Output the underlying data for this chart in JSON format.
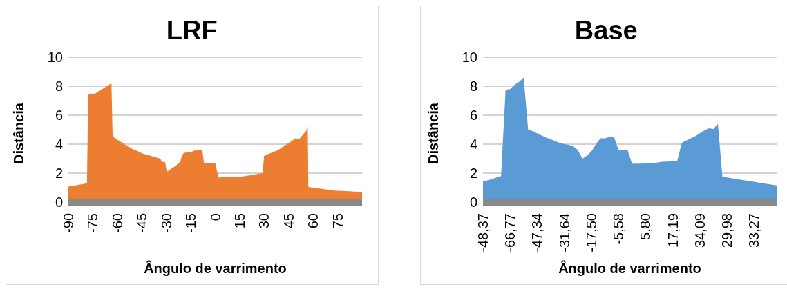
{
  "chart_data": [
    {
      "type": "area",
      "title": "LRF",
      "xlabel": "Ângulo de varrimento",
      "ylabel": "Distância",
      "color": "#ed7d31",
      "x": [
        -90,
        -78.6,
        -77.9,
        -76,
        -75,
        -72.1,
        -63.6,
        -62.9,
        -61.4,
        -55.7,
        -51.4,
        -44.3,
        -33.6,
        -32.9,
        -30.7,
        -29.7,
        -24.3,
        -21.4,
        -20.7,
        -19.3,
        -14.3,
        -13.6,
        -7.9,
        -6.9,
        0,
        1.9,
        15.7,
        29,
        30,
        38.6,
        49.3,
        51.4,
        55.7,
        56.7,
        57.1,
        72.9,
        90
      ],
      "values": [
        1.07,
        1.3,
        7.4,
        7.5,
        7.4,
        7.6,
        8.2,
        4.6,
        4.4,
        4.0,
        3.7,
        3.35,
        3.0,
        2.8,
        2.75,
        2.1,
        2.5,
        2.8,
        3.1,
        3.4,
        3.45,
        3.55,
        3.6,
        2.7,
        2.7,
        1.7,
        1.75,
        2.0,
        3.2,
        3.6,
        4.4,
        4.35,
        4.9,
        5.2,
        1.05,
        0.8,
        0.7
      ],
      "xlim": [
        -90,
        90
      ],
      "xticks": [
        -90,
        -75,
        -60,
        -45,
        -30,
        -15,
        0,
        15,
        30,
        45,
        60,
        75
      ],
      "ylim": [
        0,
        10
      ],
      "yticks": [
        0,
        2,
        4,
        6,
        8,
        10
      ],
      "grid": "y"
    },
    {
      "type": "area",
      "title": "Base",
      "xlabel": "Ângulo de varrimento",
      "ylabel": "Distância",
      "color": "#5b9bd5",
      "categories": [
        "-48,37",
        null,
        null,
        null,
        null,
        null,
        "-66,77",
        null,
        null,
        null,
        null,
        null,
        "-47,34",
        null,
        null,
        null,
        null,
        null,
        "-31,64",
        null,
        null,
        null,
        null,
        null,
        "-17,50",
        null,
        null,
        null,
        null,
        null,
        "-5,58",
        null,
        null,
        null,
        null,
        null,
        "5,80",
        null,
        null,
        null,
        null,
        null,
        "17,19",
        null,
        null,
        null,
        null,
        null,
        "34,09",
        null,
        null,
        null,
        null,
        null,
        "29,98",
        null,
        null,
        null,
        null,
        null,
        "33,27",
        null,
        null,
        null,
        null,
        null
      ],
      "values": [
        1.45,
        1.5,
        1.6,
        1.7,
        1.8,
        7.75,
        7.8,
        8.1,
        8.3,
        8.6,
        5.0,
        4.9,
        4.75,
        4.6,
        4.45,
        4.35,
        4.2,
        4.1,
        4.0,
        3.95,
        3.85,
        3.6,
        3.0,
        3.2,
        3.5,
        4.0,
        4.4,
        4.4,
        4.5,
        4.5,
        3.6,
        3.6,
        3.6,
        2.65,
        2.65,
        2.65,
        2.7,
        2.7,
        2.7,
        2.75,
        2.8,
        2.8,
        2.85,
        2.85,
        4.1,
        4.25,
        4.4,
        4.55,
        4.75,
        4.95,
        5.1,
        5.05,
        5.4,
        1.75,
        1.7,
        1.65,
        1.6,
        1.55,
        1.5,
        1.45,
        1.4,
        1.35,
        1.3,
        1.25,
        1.2,
        1.15
      ],
      "ylim": [
        0,
        10
      ],
      "yticks": [
        0,
        2,
        4,
        6,
        8,
        10
      ],
      "grid": "y"
    }
  ]
}
